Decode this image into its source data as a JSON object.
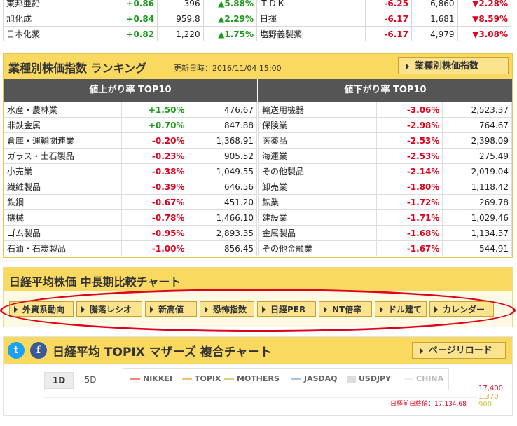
{
  "top_rows": [
    {
      "left": {
        "name": "東邦亜鉛",
        "change": "+0.86",
        "price": "396",
        "pct": "▲5.88%"
      },
      "right": {
        "name": "ＴＤＫ",
        "change": "-6.25",
        "price": "6,860",
        "pct": "▼2.28%"
      }
    },
    {
      "left": {
        "name": "旭化成",
        "change": "+0.84",
        "price": "959.8",
        "pct": "▲2.29%"
      },
      "right": {
        "name": "日揮",
        "change": "-6.17",
        "price": "1,681",
        "pct": "▼8.59%"
      }
    },
    {
      "left": {
        "name": "日本化薬",
        "change": "+0.82",
        "price": "1,220",
        "pct": "▲1.75%"
      },
      "right": {
        "name": "塩野義製薬",
        "change": "-6.17",
        "price": "4,979",
        "pct": "▼3.08%"
      }
    }
  ],
  "sector": {
    "title": "業種別株価指数 ランキング",
    "updated": "更新日時：2016/11/04 15:00",
    "button": "業種別株価指数",
    "up_header": "値上がり率 TOP10",
    "down_header": "値下がり率 TOP10",
    "up": [
      {
        "name": "水産・農林業",
        "pct": "+1.50%",
        "value": "476.67"
      },
      {
        "name": "非鉄金属",
        "pct": "+0.70%",
        "value": "847.88"
      },
      {
        "name": "倉庫・運輸関連業",
        "pct": "-0.20%",
        "value": "1,368.91"
      },
      {
        "name": "ガラス・土石製品",
        "pct": "-0.23%",
        "value": "905.52"
      },
      {
        "name": "小売業",
        "pct": "-0.38%",
        "value": "1,049.55"
      },
      {
        "name": "繊維製品",
        "pct": "-0.39%",
        "value": "646.56"
      },
      {
        "name": "鉄鋼",
        "pct": "-0.67%",
        "value": "451.20"
      },
      {
        "name": "機械",
        "pct": "-0.78%",
        "value": "1,466.10"
      },
      {
        "name": "ゴム製品",
        "pct": "-0.95%",
        "value": "2,893.35"
      },
      {
        "name": "石油・石炭製品",
        "pct": "-1.00%",
        "value": "856.45"
      }
    ],
    "down": [
      {
        "name": "輸送用機器",
        "pct": "-3.06%",
        "value": "2,523.37"
      },
      {
        "name": "保険業",
        "pct": "-2.98%",
        "value": "764.67"
      },
      {
        "name": "医薬品",
        "pct": "-2.53%",
        "value": "2,398.09"
      },
      {
        "name": "海運業",
        "pct": "-2.53%",
        "value": "275.49"
      },
      {
        "name": "その他製品",
        "pct": "-2.14%",
        "value": "2,019.04"
      },
      {
        "name": "卸売業",
        "pct": "-1.80%",
        "value": "1,118.42"
      },
      {
        "name": "鉱業",
        "pct": "-1.72%",
        "value": "269.78"
      },
      {
        "name": "建設業",
        "pct": "-1.71%",
        "value": "1,029.46"
      },
      {
        "name": "金属製品",
        "pct": "-1.68%",
        "value": "1,134.37"
      },
      {
        "name": "その他金融業",
        "pct": "-1.67%",
        "value": "544.91"
      }
    ]
  },
  "mid": {
    "title": "日経平均株価 中長期比較チャート",
    "tabs": [
      "外資系動向",
      "騰落レシオ",
      "新高値",
      "恐怖指数",
      "日経PER",
      "NT倍率",
      "ドル建て",
      "カレンダー"
    ]
  },
  "composite": {
    "title": "日経平均 TOPIX マザーズ 複合チャート",
    "reload": "ページリロード",
    "periods": [
      "1D",
      "5D"
    ],
    "legend": [
      {
        "label": "NIKKEI",
        "color": "#f08a7e"
      },
      {
        "label": "TOPIX",
        "color": "#f2c27a"
      },
      {
        "label": "MOTHERS",
        "color": "#d8d27a"
      },
      {
        "label": "JASDAQ",
        "color": "#a8c4e8"
      },
      {
        "label": "USDJPY",
        "color": "#dddddd"
      },
      {
        "label": "CHINA",
        "color": "#eeeeee"
      }
    ],
    "prev_close": "日経前日終値：17,134.68",
    "axis": [
      {
        "text": "17,400",
        "color": "#e0001b"
      },
      {
        "text": "1,370",
        "color": "#e0a040"
      },
      {
        "text": "900",
        "color": "#c8c040"
      }
    ]
  }
}
